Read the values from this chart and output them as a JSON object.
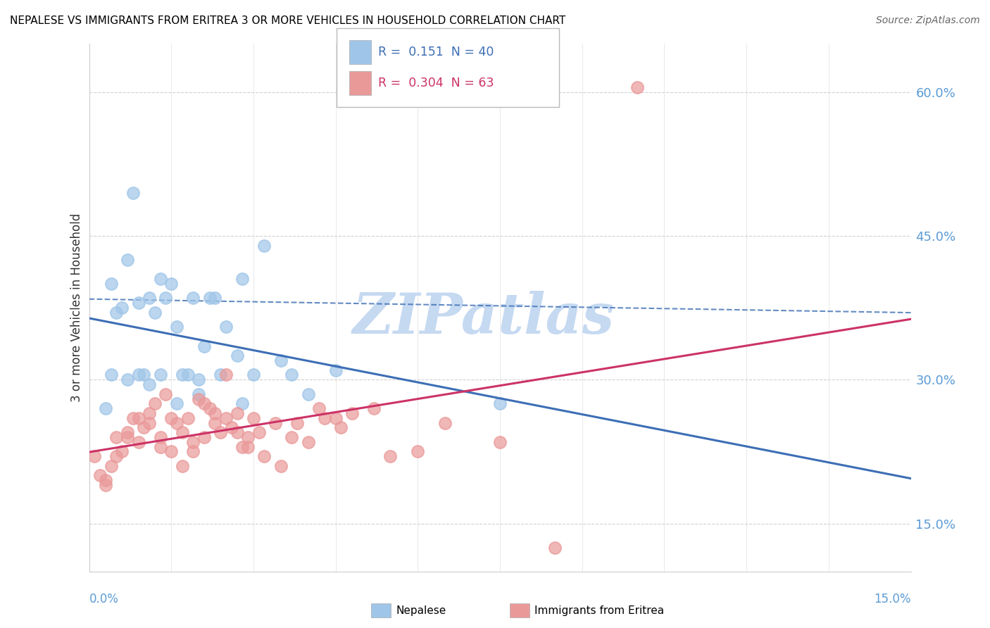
{
  "title": "NEPALESE VS IMMIGRANTS FROM ERITREA 3 OR MORE VEHICLES IN HOUSEHOLD CORRELATION CHART",
  "source": "Source: ZipAtlas.com",
  "ylabel": "3 or more Vehicles in Household",
  "xmin": 0.0,
  "xmax": 15.0,
  "ymin": 10.0,
  "ymax": 65.0,
  "yticks_pct": [
    15.0,
    30.0,
    45.0,
    60.0
  ],
  "ytick_labels": [
    "15.0%",
    "30.0%",
    "45.0%",
    "60.0%"
  ],
  "blue_R": 0.151,
  "blue_N": 40,
  "pink_R": 0.304,
  "pink_N": 63,
  "blue_color": "#9fc5e8",
  "pink_color": "#ea9999",
  "blue_line_color": "#3d6eb5",
  "pink_line_color": "#cc3366",
  "blue_legend": "Nepalese",
  "pink_legend": "Immigrants from Eritrea",
  "watermark": "ZIPatlas",
  "watermark_color": "#c5d9f1",
  "blue_x": [
    0.4,
    0.5,
    0.6,
    0.7,
    0.8,
    0.9,
    1.0,
    1.1,
    1.2,
    1.3,
    1.4,
    1.5,
    1.6,
    1.7,
    1.8,
    1.9,
    2.0,
    2.1,
    2.2,
    2.3,
    2.5,
    2.7,
    2.8,
    3.0,
    3.2,
    3.5,
    3.7,
    4.0,
    4.5,
    0.3,
    0.4,
    0.7,
    0.9,
    1.1,
    1.3,
    1.6,
    2.0,
    2.4,
    2.8,
    7.5
  ],
  "blue_y": [
    40.0,
    37.0,
    37.5,
    42.5,
    49.5,
    38.0,
    30.5,
    38.5,
    37.0,
    40.5,
    38.5,
    40.0,
    35.5,
    30.5,
    30.5,
    38.5,
    30.0,
    33.5,
    38.5,
    38.5,
    35.5,
    32.5,
    40.5,
    30.5,
    44.0,
    32.0,
    30.5,
    28.5,
    31.0,
    27.0,
    30.5,
    30.0,
    30.5,
    29.5,
    30.5,
    27.5,
    28.5,
    30.5,
    27.5,
    27.5
  ],
  "pink_x": [
    0.1,
    0.2,
    0.3,
    0.4,
    0.5,
    0.6,
    0.7,
    0.8,
    0.9,
    1.0,
    1.1,
    1.2,
    1.3,
    1.4,
    1.5,
    1.6,
    1.7,
    1.8,
    1.9,
    2.0,
    2.1,
    2.2,
    2.3,
    2.4,
    2.5,
    2.6,
    2.7,
    2.8,
    2.9,
    3.0,
    3.2,
    3.5,
    3.8,
    4.2,
    4.5,
    4.8,
    5.2,
    5.5,
    6.0,
    6.5,
    0.3,
    0.5,
    0.7,
    0.9,
    1.1,
    1.3,
    1.5,
    1.7,
    1.9,
    2.1,
    2.3,
    2.5,
    2.7,
    2.9,
    3.1,
    3.4,
    3.7,
    4.0,
    4.3,
    4.6,
    10.0,
    7.5,
    8.5
  ],
  "pink_y": [
    22.0,
    20.0,
    19.5,
    21.0,
    24.0,
    22.5,
    24.5,
    26.0,
    23.5,
    25.0,
    26.5,
    27.5,
    23.0,
    28.5,
    26.0,
    25.5,
    24.5,
    26.0,
    22.5,
    28.0,
    27.5,
    27.0,
    26.5,
    24.5,
    30.5,
    25.0,
    26.5,
    23.0,
    24.0,
    26.0,
    22.0,
    21.0,
    25.5,
    27.0,
    26.0,
    26.5,
    27.0,
    22.0,
    22.5,
    25.5,
    19.0,
    22.0,
    24.0,
    26.0,
    25.5,
    24.0,
    22.5,
    21.0,
    23.5,
    24.0,
    25.5,
    26.0,
    24.5,
    23.0,
    24.5,
    25.5,
    24.0,
    23.5,
    26.0,
    25.0,
    60.5,
    23.5,
    12.5
  ]
}
